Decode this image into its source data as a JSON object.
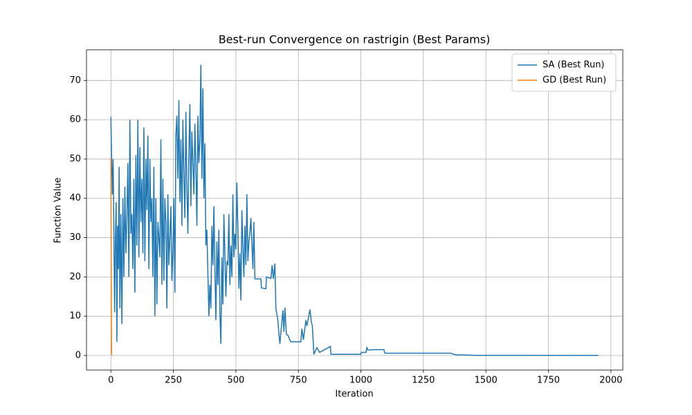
{
  "chart_data": {
    "type": "line",
    "title": "Best-run Convergence on rastrigin (Best Params)",
    "x_label": "Iteration",
    "y_label": "Function Value",
    "xlim": [
      -97.5,
      2047.5
    ],
    "ylim": [
      -3.7,
      77.8
    ],
    "xticks": [
      0,
      250,
      500,
      750,
      1000,
      1250,
      1500,
      1750,
      2000
    ],
    "yticks": [
      0,
      10,
      20,
      30,
      40,
      50,
      60,
      70
    ],
    "grid": true,
    "legend": "upper right",
    "series": [
      {
        "name": "SA (Best Run)",
        "color": "#1f77b4",
        "x": [
          0,
          3,
          6,
          9,
          12,
          15,
          18,
          21,
          24,
          27,
          30,
          33,
          36,
          40,
          44,
          48,
          52,
          56,
          60,
          64,
          68,
          72,
          76,
          80,
          84,
          88,
          92,
          96,
          100,
          104,
          108,
          112,
          116,
          120,
          124,
          128,
          132,
          136,
          140,
          144,
          148,
          152,
          156,
          160,
          164,
          168,
          172,
          176,
          180,
          184,
          188,
          192,
          196,
          200,
          204,
          208,
          212,
          216,
          220,
          224,
          228,
          232,
          236,
          240,
          244,
          248,
          252,
          256,
          260,
          264,
          268,
          272,
          276,
          280,
          284,
          288,
          292,
          296,
          300,
          304,
          308,
          312,
          316,
          320,
          324,
          328,
          332,
          336,
          340,
          344,
          348,
          352,
          356,
          360,
          364,
          368,
          372,
          376,
          380,
          384,
          388,
          392,
          396,
          400,
          404,
          408,
          412,
          416,
          420,
          424,
          428,
          432,
          436,
          440,
          444,
          448,
          452,
          456,
          460,
          464,
          468,
          472,
          476,
          480,
          484,
          488,
          492,
          496,
          500,
          504,
          508,
          512,
          516,
          520,
          524,
          528,
          532,
          536,
          540,
          544,
          548,
          552,
          556,
          560,
          564,
          568,
          572,
          576,
          600,
          602,
          620,
          622,
          640,
          645,
          650,
          656,
          660,
          668,
          672,
          676,
          688,
          692,
          696,
          702,
          710,
          714,
          720,
          760,
          764,
          770,
          780,
          784,
          790,
          796,
          802,
          806,
          812,
          824,
          835,
          878,
          880,
          1000,
          1002,
          1020,
          1024,
          1028,
          1060,
          1092,
          1096,
          1360,
          1366,
          1380,
          1430,
          1460,
          1950
        ],
        "values": [
          60.7,
          50.5,
          41,
          50,
          31,
          11,
          29,
          39,
          3.5,
          33,
          22,
          48,
          12,
          36,
          8,
          40,
          20,
          43,
          26,
          35,
          49,
          20,
          60,
          31,
          36,
          22,
          45,
          16,
          51,
          28,
          60,
          25,
          53,
          34,
          45,
          26,
          58,
          24,
          50,
          37,
          56,
          22,
          50,
          34,
          40,
          20,
          48,
          10,
          40,
          13,
          34,
          30,
          25,
          55,
          18,
          45,
          19,
          40,
          34,
          12,
          41,
          23,
          30,
          38,
          19,
          26,
          40,
          16,
          56,
          61,
          45,
          65,
          39,
          55,
          33,
          60,
          46,
          35,
          62,
          43,
          31,
          51,
          64,
          38,
          57,
          49,
          41,
          59,
          48,
          33,
          61,
          49,
          55,
          74,
          45,
          68,
          40,
          54,
          28,
          32,
          21,
          10,
          18,
          12,
          33,
          23,
          38,
          22,
          9,
          29,
          18,
          32,
          11,
          3,
          25,
          13,
          36,
          26,
          15,
          24,
          23,
          36,
          18,
          28,
          20,
          41,
          25,
          31,
          27,
          44,
          32,
          17,
          26,
          14,
          37,
          28,
          20,
          33,
          23,
          41,
          24,
          29,
          31,
          35,
          29,
          22,
          34,
          19.5,
          19.5,
          17.2,
          17,
          20,
          19.6,
          23,
          19.5,
          23.4,
          12,
          9,
          5.5,
          3,
          11.5,
          6,
          12.2,
          5.4,
          5,
          4.2,
          3.5,
          3.5,
          6.8,
          4,
          9,
          7.5,
          9.5,
          11.7,
          8.5,
          7.5,
          0.3,
          2,
          0.8,
          2.3,
          0.3,
          0.3,
          0.8,
          0.8,
          2,
          1.4,
          1.5,
          1.5,
          0.6,
          0.6,
          0.4,
          0.2,
          0.1,
          0.05,
          0.02
        ]
      },
      {
        "name": "GD (Best Run)",
        "color": "#ff7f0e",
        "x": [
          0,
          1,
          2,
          3,
          4
        ],
        "values": [
          50.2,
          31,
          8,
          0.5,
          0.1
        ]
      }
    ]
  }
}
